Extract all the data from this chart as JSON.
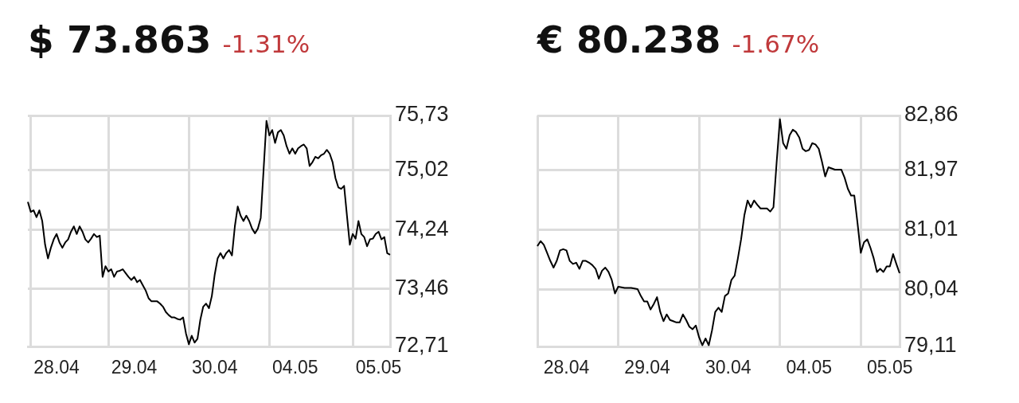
{
  "chart_data": [
    {
      "type": "line",
      "title": "$ 73.863",
      "subtitle": "-1.31%",
      "color": "#000000",
      "grid": true,
      "categories": [
        null,
        null,
        null,
        null,
        null,
        null,
        null,
        null,
        null,
        null,
        "28.04",
        null,
        null,
        null,
        null,
        null,
        null,
        null,
        null,
        null,
        null,
        null,
        null,
        null,
        null,
        null,
        null,
        null,
        null,
        null,
        null,
        null,
        null,
        null,
        null,
        null,
        null,
        "29.04",
        null,
        null,
        null,
        null,
        null,
        null,
        null,
        null,
        null,
        null,
        null,
        null,
        null,
        null,
        null,
        null,
        null,
        null,
        null,
        null,
        null,
        null,
        null,
        null,
        null,
        null,
        null,
        "30.04",
        null,
        null,
        null,
        null,
        null,
        null,
        null,
        null,
        null,
        null,
        null,
        null,
        null,
        null,
        null,
        null,
        null,
        null,
        null,
        null,
        null,
        null,
        null,
        null,
        null,
        null,
        null,
        "04.05",
        null,
        null,
        null,
        null,
        null,
        null,
        null,
        null,
        null,
        null,
        null,
        null,
        null,
        null,
        null,
        null,
        null,
        null,
        null,
        null,
        null,
        null,
        null,
        null,
        null,
        null,
        null,
        null,
        "05.05",
        null,
        null,
        null,
        null
      ],
      "values": [
        74.6,
        74.47,
        74.49,
        74.4,
        74.49,
        74.35,
        74.04,
        73.86,
        74.0,
        74.11,
        74.18,
        74.07,
        74.0,
        74.07,
        74.11,
        74.21,
        74.28,
        74.18,
        74.28,
        74.21,
        74.11,
        74.07,
        74.12,
        74.18,
        74.14,
        74.16,
        73.62,
        73.76,
        73.69,
        73.72,
        73.62,
        73.69,
        73.7,
        73.72,
        73.67,
        73.62,
        73.58,
        73.62,
        73.55,
        73.58,
        73.51,
        73.44,
        73.34,
        73.3,
        73.3,
        73.3,
        73.27,
        73.23,
        73.16,
        73.12,
        73.09,
        73.09,
        73.07,
        73.06,
        73.09,
        72.88,
        72.74,
        72.85,
        72.76,
        72.81,
        73.06,
        73.23,
        73.27,
        73.21,
        73.37,
        73.65,
        73.86,
        73.93,
        73.86,
        73.93,
        73.97,
        73.9,
        74.28,
        74.54,
        74.42,
        74.35,
        74.42,
        74.35,
        74.25,
        74.19,
        74.25,
        74.39,
        75.02,
        75.66,
        75.47,
        75.54,
        75.37,
        75.51,
        75.54,
        75.47,
        75.33,
        75.23,
        75.3,
        75.23,
        75.3,
        75.33,
        75.35,
        75.3,
        75.07,
        75.12,
        75.19,
        75.17,
        75.21,
        75.23,
        75.28,
        75.23,
        75.12,
        74.91,
        74.79,
        74.77,
        74.81,
        74.42,
        74.04,
        74.18,
        74.12,
        74.35,
        74.18,
        74.14,
        74.02,
        74.11,
        74.12,
        74.18,
        74.21,
        74.11,
        74.14,
        73.93,
        73.91
      ],
      "ylim": [
        72.71,
        75.73
      ],
      "yticks": [
        {
          "value": 72.71,
          "label": "72,71"
        },
        {
          "value": 73.46,
          "label": "73,46"
        },
        {
          "value": 74.24,
          "label": "74,24"
        },
        {
          "value": 75.02,
          "label": "75,02"
        },
        {
          "value": 75.73,
          "label": "75,73"
        }
      ]
    },
    {
      "type": "line",
      "title": "€ 80.238",
      "subtitle": "-1.67%",
      "color": "#000000",
      "grid": true,
      "categories": [
        null,
        null,
        null,
        null,
        null,
        null,
        null,
        null,
        null,
        "28.04",
        null,
        null,
        null,
        null,
        null,
        null,
        null,
        null,
        null,
        null,
        null,
        null,
        null,
        null,
        null,
        null,
        null,
        null,
        null,
        null,
        null,
        null,
        null,
        null,
        "29.04",
        null,
        null,
        null,
        null,
        null,
        null,
        null,
        null,
        null,
        null,
        null,
        null,
        null,
        null,
        null,
        null,
        null,
        null,
        null,
        null,
        null,
        null,
        null,
        null,
        "30.04",
        null,
        null,
        null,
        null,
        null,
        null,
        null,
        null,
        null,
        null,
        null,
        null,
        null,
        null,
        null,
        null,
        null,
        null,
        null,
        null,
        null,
        null,
        null,
        null,
        "04.05",
        null,
        null,
        null,
        null,
        null,
        null,
        null,
        null,
        null,
        null,
        null,
        null,
        null,
        null,
        null,
        null,
        null,
        null,
        null,
        null,
        null,
        null,
        null,
        null,
        "05.05",
        null,
        null,
        null
      ],
      "values": [
        80.74,
        80.82,
        80.76,
        80.63,
        80.5,
        80.39,
        80.5,
        80.67,
        80.69,
        80.67,
        80.5,
        80.45,
        80.47,
        80.37,
        80.5,
        80.5,
        80.47,
        80.43,
        80.37,
        80.21,
        80.34,
        80.39,
        80.32,
        80.19,
        79.97,
        80.08,
        80.07,
        80.06,
        80.06,
        80.06,
        80.05,
        80.04,
        79.93,
        79.84,
        79.84,
        79.71,
        79.8,
        79.91,
        79.67,
        79.52,
        79.63,
        79.54,
        79.52,
        79.5,
        79.5,
        79.63,
        79.54,
        79.43,
        79.39,
        79.45,
        79.26,
        79.13,
        79.24,
        79.13,
        79.37,
        79.67,
        79.74,
        79.67,
        79.93,
        79.97,
        80.19,
        80.26,
        80.54,
        80.85,
        81.24,
        81.48,
        81.37,
        81.48,
        81.41,
        81.35,
        81.35,
        81.35,
        81.3,
        81.37,
        82.11,
        82.8,
        82.41,
        82.32,
        82.54,
        82.63,
        82.59,
        82.5,
        82.32,
        82.28,
        82.3,
        82.41,
        82.39,
        82.32,
        82.11,
        81.87,
        82.02,
        82.0,
        81.98,
        81.98,
        81.98,
        81.85,
        81.67,
        81.56,
        81.56,
        81.11,
        80.63,
        80.8,
        80.85,
        80.71,
        80.54,
        80.32,
        80.37,
        80.32,
        80.41,
        80.41,
        80.61,
        80.45,
        80.3
      ],
      "ylim": [
        79.11,
        82.86
      ],
      "yticks": [
        {
          "value": 79.11,
          "label": "79,11"
        },
        {
          "value": 80.04,
          "label": "80,04"
        },
        {
          "value": 81.01,
          "label": "81,01"
        },
        {
          "value": 81.97,
          "label": "81,97"
        },
        {
          "value": 82.86,
          "label": "82,86"
        }
      ]
    }
  ]
}
